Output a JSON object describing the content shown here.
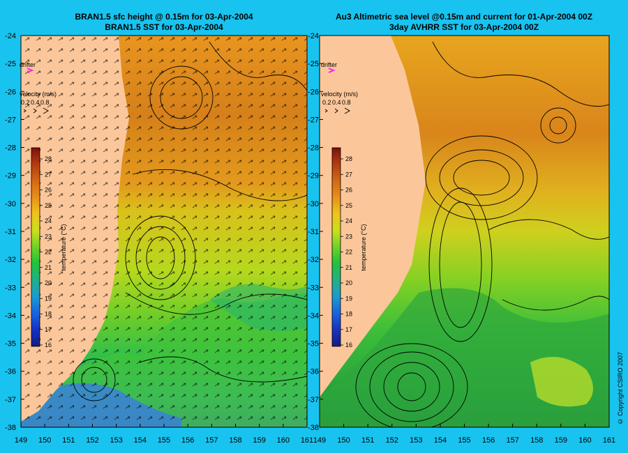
{
  "left_panel": {
    "title_line1": "BRAN1.5 sfc height @ 0.15m for 03-Apr-2004",
    "title_line2": "BRAN1.5 SST for 03-Apr-2004"
  },
  "right_panel": {
    "title_line1": "Au3 Altimetric sea level  @0.15m and current for 01-Apr-2004 00Z",
    "title_line2": "3day AVHRR SST for 03-Apr-2004 00Z"
  },
  "legend": {
    "drifter_label": "drifter",
    "velocity_label": "velocity (m/s)",
    "velocity_values": [
      "0.2",
      "0.4",
      "0.8"
    ],
    "temperature_label": "temperature (°C)",
    "temperature_ticks": [
      "28",
      "27",
      "26",
      "25",
      "24",
      "23",
      "22",
      "21",
      "20",
      "19",
      "18",
      "17",
      "16"
    ]
  },
  "axes": {
    "lat_ticks": [
      "-24",
      "-25",
      "-26",
      "-27",
      "-28",
      "-29",
      "-30",
      "-31",
      "-32",
      "-33",
      "-34",
      "-35",
      "-36",
      "-37",
      "-38"
    ],
    "lon_ticks": [
      "149",
      "150",
      "151",
      "152",
      "153",
      "154",
      "155",
      "156",
      "157",
      "158",
      "159",
      "160",
      "161"
    ]
  },
  "copyright": "© Copyright CSIRO 2007",
  "colors": {
    "background": "#19c3ef",
    "land": "#fbc79a",
    "drifter": "#ff20ff"
  }
}
